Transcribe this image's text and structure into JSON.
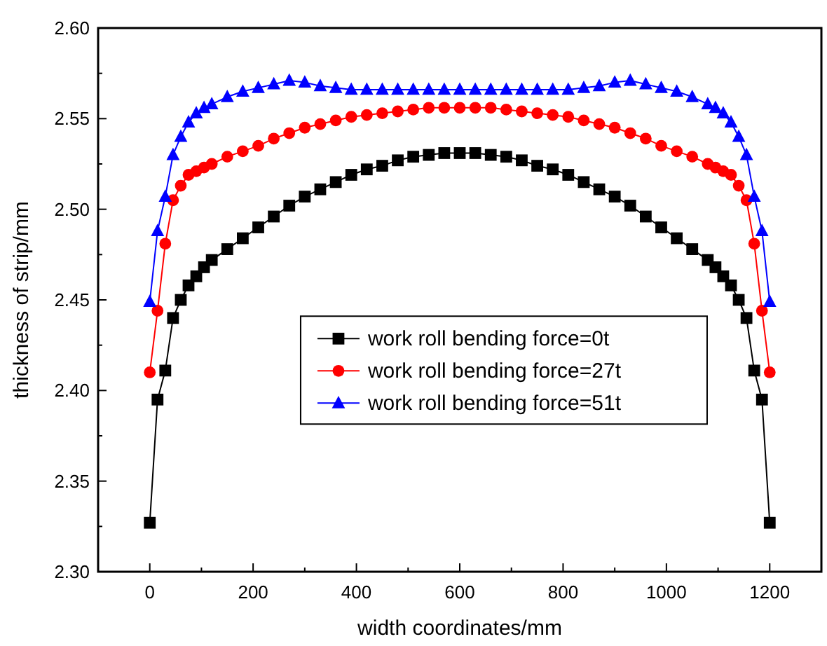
{
  "chart_data": {
    "type": "line",
    "xlabel": "width coordinates/mm",
    "ylabel": "thickness of strip/mm",
    "x": [
      0,
      15,
      30,
      45,
      60,
      75,
      90,
      105,
      120,
      150,
      180,
      210,
      240,
      270,
      300,
      330,
      360,
      390,
      420,
      450,
      480,
      510,
      540,
      570,
      600,
      630,
      660,
      690,
      720,
      750,
      780,
      810,
      840,
      870,
      900,
      930,
      960,
      990,
      1020,
      1050,
      1080,
      1095,
      1110,
      1125,
      1140,
      1155,
      1170,
      1185,
      1200
    ],
    "series": [
      {
        "name": "work roll bending force=0t",
        "color": "#000000",
        "marker": "square",
        "values": [
          2.327,
          2.395,
          2.411,
          2.44,
          2.45,
          2.458,
          2.463,
          2.468,
          2.472,
          2.478,
          2.484,
          2.49,
          2.496,
          2.502,
          2.507,
          2.511,
          2.515,
          2.519,
          2.522,
          2.524,
          2.527,
          2.529,
          2.53,
          2.531,
          2.531,
          2.531,
          2.53,
          2.529,
          2.527,
          2.524,
          2.522,
          2.519,
          2.515,
          2.511,
          2.507,
          2.502,
          2.496,
          2.49,
          2.484,
          2.478,
          2.472,
          2.468,
          2.463,
          2.458,
          2.45,
          2.44,
          2.411,
          2.395,
          2.327
        ]
      },
      {
        "name": "work roll bending force=27t",
        "color": "#ff0000",
        "marker": "circle",
        "values": [
          2.41,
          2.444,
          2.481,
          2.505,
          2.513,
          2.519,
          2.521,
          2.523,
          2.525,
          2.529,
          2.532,
          2.535,
          2.539,
          2.542,
          2.545,
          2.547,
          2.549,
          2.551,
          2.552,
          2.553,
          2.554,
          2.555,
          2.556,
          2.556,
          2.556,
          2.556,
          2.556,
          2.555,
          2.554,
          2.553,
          2.552,
          2.551,
          2.549,
          2.547,
          2.545,
          2.542,
          2.539,
          2.535,
          2.532,
          2.529,
          2.525,
          2.523,
          2.521,
          2.519,
          2.513,
          2.505,
          2.481,
          2.444,
          2.41
        ]
      },
      {
        "name": "work roll bending force=51t",
        "color": "#0000ff",
        "marker": "triangle",
        "values": [
          2.449,
          2.488,
          2.507,
          2.53,
          2.54,
          2.548,
          2.553,
          2.556,
          2.558,
          2.562,
          2.565,
          2.567,
          2.569,
          2.571,
          2.57,
          2.568,
          2.567,
          2.566,
          2.566,
          2.566,
          2.566,
          2.566,
          2.566,
          2.566,
          2.566,
          2.566,
          2.566,
          2.566,
          2.566,
          2.566,
          2.566,
          2.566,
          2.567,
          2.568,
          2.57,
          2.571,
          2.569,
          2.567,
          2.565,
          2.562,
          2.558,
          2.556,
          2.553,
          2.548,
          2.54,
          2.53,
          2.507,
          2.488,
          2.449
        ]
      }
    ],
    "xlim": [
      -100,
      1300
    ],
    "xticks": [
      {
        "value": -100,
        "label": null
      },
      0,
      {
        "value": 100,
        "label": null
      },
      200,
      {
        "value": 300,
        "label": null
      },
      400,
      {
        "value": 500,
        "label": null
      },
      600,
      {
        "value": 700,
        "label": null
      },
      800,
      {
        "value": 900,
        "label": null
      },
      1000,
      {
        "value": 1100,
        "label": null
      },
      1200,
      {
        "value": 1300,
        "label": null
      }
    ],
    "ylim": [
      2.3,
      2.6
    ],
    "yticks": [
      {
        "value": 2.3,
        "label": "2.30"
      },
      {
        "value": 2.325,
        "label": null
      },
      {
        "value": 2.35,
        "label": "2.35"
      },
      {
        "value": 2.375,
        "label": null
      },
      {
        "value": 2.4,
        "label": "2.40"
      },
      {
        "value": 2.425,
        "label": null
      },
      {
        "value": 2.45,
        "label": "2.45"
      },
      {
        "value": 2.475,
        "label": null
      },
      {
        "value": 2.5,
        "label": "2.50"
      },
      {
        "value": 2.525,
        "label": null
      },
      {
        "value": 2.55,
        "label": "2.55"
      },
      {
        "value": 2.575,
        "label": null
      },
      {
        "value": 2.6,
        "label": "2.60"
      }
    ],
    "legend": "right",
    "grid": false,
    "line_style": "solid"
  }
}
